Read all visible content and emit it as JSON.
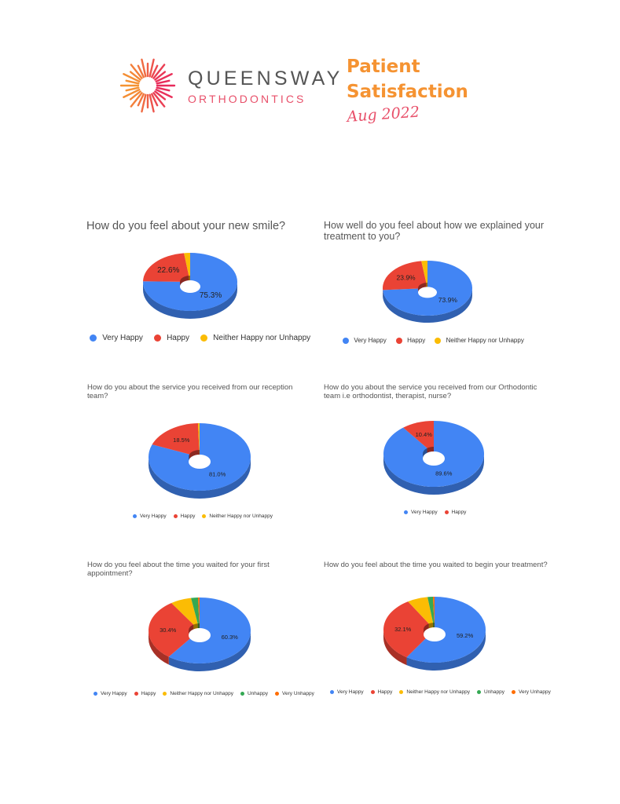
{
  "colors": {
    "very_happy": "#4285F4",
    "happy": "#EA4335",
    "neither": "#FBBC04",
    "unhappy": "#34A853",
    "very_unhappy": "#FF6D01",
    "brand_grey": "#555555",
    "brand_pink": "#E8506A",
    "brand_orange": "#F59332"
  },
  "header": {
    "logo_word_1": "QUEENSWAY",
    "logo_word_2": "ORTHODONTICS",
    "title_line_1": "Patient",
    "title_line_2": "Satisfaction",
    "date": "Aug 2022"
  },
  "chart_data": [
    {
      "type": "pie",
      "title": "How do you feel about your new smile?",
      "categories": [
        "Very Happy",
        "Happy",
        "Neither Happy nor Unhappy"
      ],
      "values": [
        75.3,
        22.6,
        2.1
      ],
      "labels": [
        "75.3%",
        "22.6%",
        ""
      ],
      "legend": [
        "Very Happy",
        "Happy",
        "Neither Happy nor Unhappy"
      ],
      "legend_position": "bottom"
    },
    {
      "type": "pie",
      "title": "How well do you feel about how we explained your treatment to you?",
      "categories": [
        "Very Happy",
        "Happy",
        "Neither Happy nor Unhappy"
      ],
      "values": [
        73.9,
        23.9,
        2.2
      ],
      "labels": [
        "73.9%",
        "23.9%",
        ""
      ],
      "legend": [
        "Very Happy",
        "Happy",
        "Neither Happy nor Unhappy"
      ],
      "legend_position": "bottom"
    },
    {
      "type": "pie",
      "title": "How do you about the service you received from our reception team?",
      "categories": [
        "Very Happy",
        "Happy",
        "Neither Happy nor Unhappy"
      ],
      "values": [
        81.0,
        18.5,
        0.5
      ],
      "labels": [
        "81.0%",
        "18.5%",
        ""
      ],
      "legend": [
        "Very Happy",
        "Happy",
        "Neither Happy nor Unhappy"
      ],
      "legend_position": "bottom"
    },
    {
      "type": "pie",
      "title": "How do you about the service you received from our Orthodontic team i.e orthodontist, therapist, nurse?",
      "categories": [
        "Very Happy",
        "Happy"
      ],
      "values": [
        89.6,
        10.4
      ],
      "labels": [
        "89.6%",
        "10.4%"
      ],
      "legend": [
        "Very Happy",
        "Happy"
      ],
      "legend_position": "bottom"
    },
    {
      "type": "pie",
      "title": "How do you feel about the time you waited for your first appointment?",
      "categories": [
        "Very Happy",
        "Happy",
        "Neither Happy nor Unhappy",
        "Unhappy",
        "Very Unhappy"
      ],
      "values": [
        60.3,
        30.4,
        6.6,
        2.2,
        0.5
      ],
      "labels": [
        "60.3%",
        "30.4%",
        "",
        "",
        ""
      ],
      "legend": [
        "Very Happy",
        "Happy",
        "Neither Happy nor Unhappy",
        "Unhappy",
        "Very Unhappy"
      ],
      "legend_position": "bottom"
    },
    {
      "type": "pie",
      "title": "How do you feel about the time you waited to begin your treatment?",
      "categories": [
        "Very Happy",
        "Happy",
        "Neither Happy nor Unhappy",
        "Unhappy",
        "Very Unhappy"
      ],
      "values": [
        59.2,
        32.1,
        6.5,
        1.7,
        0.5
      ],
      "labels": [
        "59.2%",
        "32.1%",
        "",
        "",
        ""
      ],
      "legend": [
        "Very Happy",
        "Happy",
        "Neither Happy nor Unhappy",
        "Unhappy",
        "Very Unhappy"
      ],
      "legend_position": "bottom"
    }
  ]
}
